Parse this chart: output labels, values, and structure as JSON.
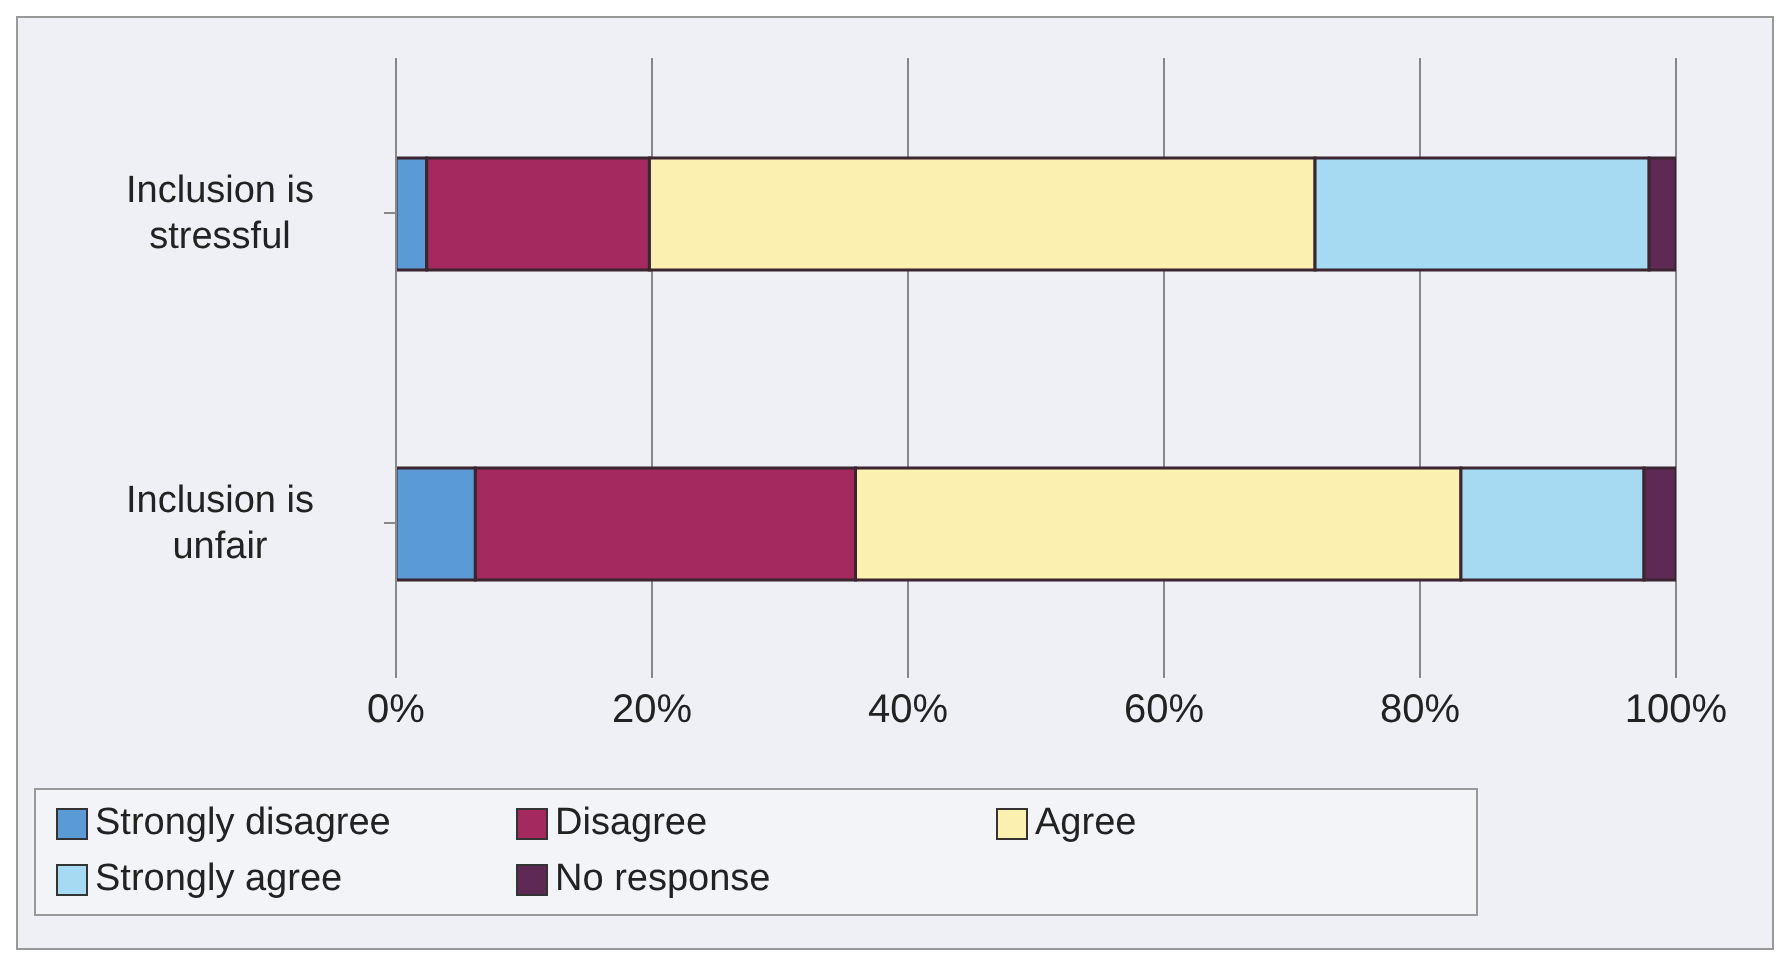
{
  "chart_data": {
    "type": "bar",
    "orientation": "horizontal",
    "stacked": true,
    "categories": [
      "Inclusion is stressful",
      "Inclusion is unfair"
    ],
    "series": [
      {
        "name": "Strongly disagree",
        "color": "#5b9bd5",
        "values": [
          2.4,
          6.2
        ]
      },
      {
        "name": "Disagree",
        "color": "#a3295f",
        "values": [
          17.4,
          29.7
        ]
      },
      {
        "name": "Agree",
        "color": "#fbf0b0",
        "values": [
          52,
          47.3
        ]
      },
      {
        "name": "Strongly agree",
        "color": "#a6daf2",
        "values": [
          26.1,
          14.3
        ]
      },
      {
        "name": "No response",
        "color": "#5e2a55",
        "values": [
          2.1,
          2.5
        ]
      }
    ],
    "xlim": [
      0,
      100
    ],
    "xticks": [
      {
        "value": 0,
        "label": "0%"
      },
      {
        "value": 20,
        "label": "20%"
      },
      {
        "value": 40,
        "label": "40%"
      },
      {
        "value": 60,
        "label": "60%"
      },
      {
        "value": 80,
        "label": "80%"
      },
      {
        "value": 100,
        "label": "100%"
      }
    ],
    "grid": "x",
    "legend": "bottom"
  }
}
